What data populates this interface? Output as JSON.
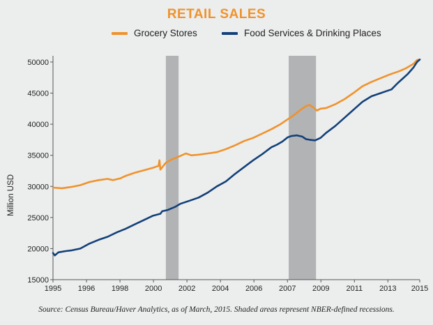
{
  "chart_data": {
    "type": "line",
    "title": "RETAIL SALES",
    "ylabel": "Million USD",
    "xlabel": "",
    "source": "Source: Census Bureau/Haver Analytics, as of  March, 2015. Shaded areas represent NBER-defined recessions.",
    "xlim": [
      1995.0,
      2015.15
    ],
    "ylim": [
      15000,
      51000
    ],
    "x_ticks": [
      {
        "label": "1995",
        "x": 1995.0
      },
      {
        "label": "1996",
        "x": 1996.84
      },
      {
        "label": "1998",
        "x": 1998.68
      },
      {
        "label": "2000",
        "x": 2000.52
      },
      {
        "label": "2002",
        "x": 2002.36
      },
      {
        "label": "2004",
        "x": 2004.2
      },
      {
        "label": "2006",
        "x": 2006.04
      },
      {
        "label": "2007",
        "x": 2007.88
      },
      {
        "label": "2009",
        "x": 2009.72
      },
      {
        "label": "2011",
        "x": 2011.56
      },
      {
        "label": "2013",
        "x": 2013.4
      },
      {
        "label": "2015",
        "x": 2015.15
      }
    ],
    "y_ticks": [
      15000,
      20000,
      25000,
      30000,
      35000,
      40000,
      45000,
      50000
    ],
    "recessions": [
      [
        2001.2,
        2001.9
      ],
      [
        2007.95,
        2009.45
      ]
    ],
    "legend_position": "top",
    "series": [
      {
        "name": "Grocery Stores",
        "color": "#f0922b",
        "points": [
          [
            1995.0,
            29800
          ],
          [
            1995.5,
            29700
          ],
          [
            1996.0,
            29900
          ],
          [
            1996.5,
            30200
          ],
          [
            1997.0,
            30700
          ],
          [
            1997.5,
            31000
          ],
          [
            1998.0,
            31200
          ],
          [
            1998.3,
            31000
          ],
          [
            1998.7,
            31300
          ],
          [
            1999.0,
            31700
          ],
          [
            1999.5,
            32200
          ],
          [
            2000.0,
            32600
          ],
          [
            2000.5,
            33000
          ],
          [
            2000.8,
            33300
          ],
          [
            2000.85,
            34200
          ],
          [
            2000.9,
            32700
          ],
          [
            2001.2,
            33800
          ],
          [
            2001.5,
            34300
          ],
          [
            2002.0,
            34900
          ],
          [
            2002.3,
            35300
          ],
          [
            2002.6,
            35000
          ],
          [
            2003.0,
            35100
          ],
          [
            2003.5,
            35300
          ],
          [
            2004.0,
            35500
          ],
          [
            2004.5,
            36000
          ],
          [
            2005.0,
            36600
          ],
          [
            2005.5,
            37300
          ],
          [
            2006.0,
            37800
          ],
          [
            2006.5,
            38500
          ],
          [
            2007.0,
            39200
          ],
          [
            2007.5,
            40000
          ],
          [
            2008.0,
            41000
          ],
          [
            2008.3,
            41600
          ],
          [
            2008.6,
            42300
          ],
          [
            2008.9,
            42900
          ],
          [
            2009.1,
            43100
          ],
          [
            2009.3,
            42700
          ],
          [
            2009.5,
            42200
          ],
          [
            2009.7,
            42500
          ],
          [
            2010.0,
            42600
          ],
          [
            2010.5,
            43200
          ],
          [
            2011.0,
            44000
          ],
          [
            2011.5,
            45000
          ],
          [
            2012.0,
            46100
          ],
          [
            2012.5,
            46800
          ],
          [
            2013.0,
            47400
          ],
          [
            2013.5,
            48000
          ],
          [
            2014.0,
            48500
          ],
          [
            2014.4,
            49000
          ],
          [
            2014.8,
            49700
          ],
          [
            2015.0,
            50300
          ],
          [
            2015.15,
            50400
          ]
        ]
      },
      {
        "name": "Food Services & Drinking Places",
        "color": "#124079",
        "points": [
          [
            1995.0,
            19300
          ],
          [
            1995.1,
            18900
          ],
          [
            1995.3,
            19400
          ],
          [
            1995.7,
            19600
          ],
          [
            1996.0,
            19700
          ],
          [
            1996.5,
            20000
          ],
          [
            1997.0,
            20800
          ],
          [
            1997.5,
            21400
          ],
          [
            1998.0,
            21900
          ],
          [
            1998.5,
            22600
          ],
          [
            1999.0,
            23200
          ],
          [
            1999.5,
            23900
          ],
          [
            2000.0,
            24600
          ],
          [
            2000.5,
            25300
          ],
          [
            2000.9,
            25600
          ],
          [
            2001.0,
            26000
          ],
          [
            2001.3,
            26200
          ],
          [
            2001.7,
            26700
          ],
          [
            2002.0,
            27200
          ],
          [
            2002.5,
            27700
          ],
          [
            2003.0,
            28200
          ],
          [
            2003.5,
            29000
          ],
          [
            2004.0,
            30000
          ],
          [
            2004.5,
            30800
          ],
          [
            2005.0,
            32000
          ],
          [
            2005.5,
            33100
          ],
          [
            2006.0,
            34200
          ],
          [
            2006.5,
            35200
          ],
          [
            2007.0,
            36300
          ],
          [
            2007.3,
            36700
          ],
          [
            2007.6,
            37200
          ],
          [
            2007.9,
            37900
          ],
          [
            2008.1,
            38100
          ],
          [
            2008.4,
            38200
          ],
          [
            2008.7,
            38000
          ],
          [
            2008.9,
            37600
          ],
          [
            2009.1,
            37500
          ],
          [
            2009.4,
            37400
          ],
          [
            2009.7,
            37800
          ],
          [
            2010.0,
            38600
          ],
          [
            2010.5,
            39700
          ],
          [
            2011.0,
            41000
          ],
          [
            2011.5,
            42300
          ],
          [
            2012.0,
            43600
          ],
          [
            2012.5,
            44500
          ],
          [
            2013.0,
            45000
          ],
          [
            2013.3,
            45300
          ],
          [
            2013.6,
            45600
          ],
          [
            2013.9,
            46500
          ],
          [
            2014.2,
            47300
          ],
          [
            2014.5,
            48100
          ],
          [
            2014.8,
            49100
          ],
          [
            2015.0,
            50000
          ],
          [
            2015.15,
            50400
          ]
        ]
      }
    ]
  }
}
